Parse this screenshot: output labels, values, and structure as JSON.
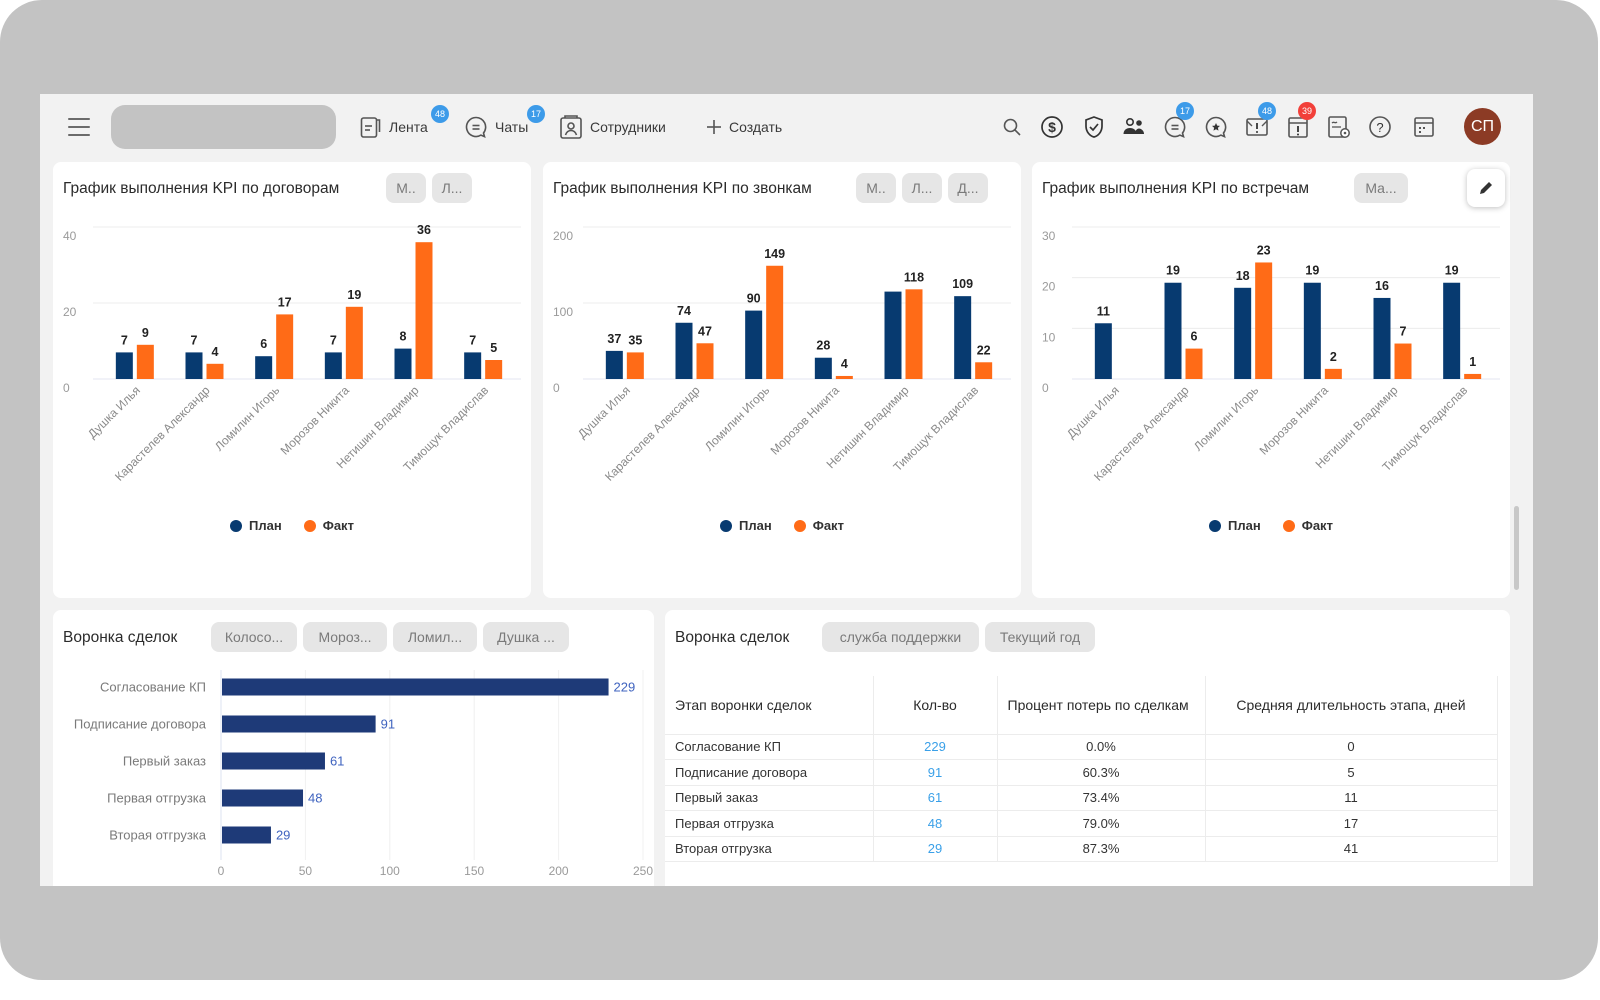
{
  "header": {
    "nav": [
      {
        "label": "Лента",
        "badge": "48"
      },
      {
        "label": "Чаты",
        "badge": "17"
      },
      {
        "label": "Сотрудники"
      },
      {
        "label": "Создать"
      }
    ],
    "icons": [
      {
        "name": "search-icon"
      },
      {
        "name": "dollar-icon"
      },
      {
        "name": "shield-check-icon"
      },
      {
        "name": "users-icon"
      },
      {
        "name": "chat-icon",
        "badge": "17"
      },
      {
        "name": "star-chat-icon"
      },
      {
        "name": "mail-alert-icon",
        "badge": "48"
      },
      {
        "name": "alert-window-icon",
        "badge": "39"
      },
      {
        "name": "document-settings-icon"
      },
      {
        "name": "help-icon"
      },
      {
        "name": "calendar-icon"
      }
    ],
    "avatar_initials": "СП"
  },
  "colors": {
    "plan": "#073a70",
    "fact": "#ff6b17",
    "funnel_bar": "#1e3a78",
    "funnel_label": "#3f63bf",
    "table_link": "#3aa0e8",
    "badge_blue": "#3d9be9",
    "badge_red": "#f2403a"
  },
  "legend": {
    "plan": "План",
    "fact": "Факт"
  },
  "kpi_cards": [
    {
      "title": "График выполнения KPI по договорам",
      "chips": [
        "М..",
        "Л..."
      ]
    },
    {
      "title": "График выполнения KPI по звонкам",
      "chips": [
        "М..",
        "Л...",
        "Д..."
      ]
    },
    {
      "title": "График выполнения KPI по встречам",
      "chips": [
        "Ма..."
      ]
    }
  ],
  "funnel_card": {
    "title": "Воронка сделок",
    "chips": [
      "Колосо...",
      "Мороз...",
      "Ломил...",
      "Душка ..."
    ]
  },
  "table_card": {
    "title": "Воронка сделок",
    "chips": [
      "служба поддержки",
      "Текущий год"
    ],
    "columns": [
      "Этап воронки сделок",
      "Кол-во",
      "Процент потерь по сделкам",
      "Средняя длительность этапа, дней"
    ],
    "rows": [
      [
        "Согласование КП",
        "229",
        "0.0%",
        "0"
      ],
      [
        "Подписание договора",
        "91",
        "60.3%",
        "5"
      ],
      [
        "Первый заказ",
        "61",
        "73.4%",
        "11"
      ],
      [
        "Первая отгрузка",
        "48",
        "79.0%",
        "17"
      ],
      [
        "Вторая отгрузка",
        "29",
        "87.3%",
        "41"
      ]
    ]
  },
  "chart_data": [
    {
      "type": "bar",
      "title": "График выполнения KPI по договорам",
      "categories": [
        "Душка Илья",
        "Карастелев Александр",
        "Ломилин Игорь",
        "Морозов Никита",
        "Нетишин Владимир",
        "Тимощук Владислав"
      ],
      "series": [
        {
          "name": "План",
          "values": [
            7,
            7,
            6,
            7,
            8,
            7
          ],
          "labels": [
            "7",
            "7",
            "6",
            "7",
            "8",
            "7"
          ]
        },
        {
          "name": "Факт",
          "values": [
            9,
            4,
            17,
            19,
            36,
            5
          ],
          "labels": [
            "9",
            "4",
            "17",
            "19",
            "36",
            "5"
          ]
        }
      ],
      "yticks": [
        0,
        20,
        40
      ],
      "ylim": [
        0,
        40
      ],
      "legend": "bottom",
      "grid": true
    },
    {
      "type": "bar",
      "title": "График выполнения KPI по звонкам",
      "categories": [
        "Душка Илья",
        "Карастелев Александр",
        "Ломилин Игорь",
        "Морозов Никита",
        "Нетишин Владимир",
        "Тимощук Владислав"
      ],
      "series": [
        {
          "name": "План",
          "values": [
            37,
            74,
            90,
            28,
            115,
            109
          ],
          "labels": [
            "37",
            "74",
            "90",
            "28",
            "",
            "109"
          ]
        },
        {
          "name": "Факт",
          "values": [
            35,
            47,
            149,
            4,
            118,
            22
          ],
          "labels": [
            "35",
            "47",
            "149",
            "4",
            "118",
            "22"
          ]
        }
      ],
      "yticks": [
        0,
        100,
        200
      ],
      "ylim": [
        0,
        200
      ],
      "legend": "bottom",
      "grid": true
    },
    {
      "type": "bar",
      "title": "График выполнения KPI по встречам",
      "categories": [
        "Душка Илья",
        "Карастелев Александр",
        "Ломилин Игорь",
        "Морозов Никита",
        "Нетишин Владимир",
        "Тимощук Владислав"
      ],
      "series": [
        {
          "name": "План",
          "values": [
            11,
            19,
            18,
            19,
            16,
            19
          ],
          "labels": [
            "11",
            "19",
            "18",
            "19",
            "16",
            "19"
          ]
        },
        {
          "name": "Факт",
          "values": [
            0,
            6,
            23,
            2,
            7,
            1
          ],
          "labels": [
            "",
            "6",
            "23",
            "2",
            "7",
            "1"
          ]
        }
      ],
      "yticks": [
        0,
        10,
        20,
        30
      ],
      "ylim": [
        0,
        30
      ],
      "legend": "bottom",
      "grid": true
    },
    {
      "type": "bar",
      "orientation": "horizontal",
      "title": "Воронка сделок",
      "categories": [
        "Согласование КП",
        "Подписание договора",
        "Первый заказ",
        "Первая отгрузка",
        "Вторая отгрузка"
      ],
      "values": [
        229,
        91,
        61,
        48,
        29
      ],
      "xticks": [
        0,
        50,
        100,
        150,
        200,
        250
      ],
      "xlim": [
        0,
        250
      ],
      "grid": true
    }
  ]
}
